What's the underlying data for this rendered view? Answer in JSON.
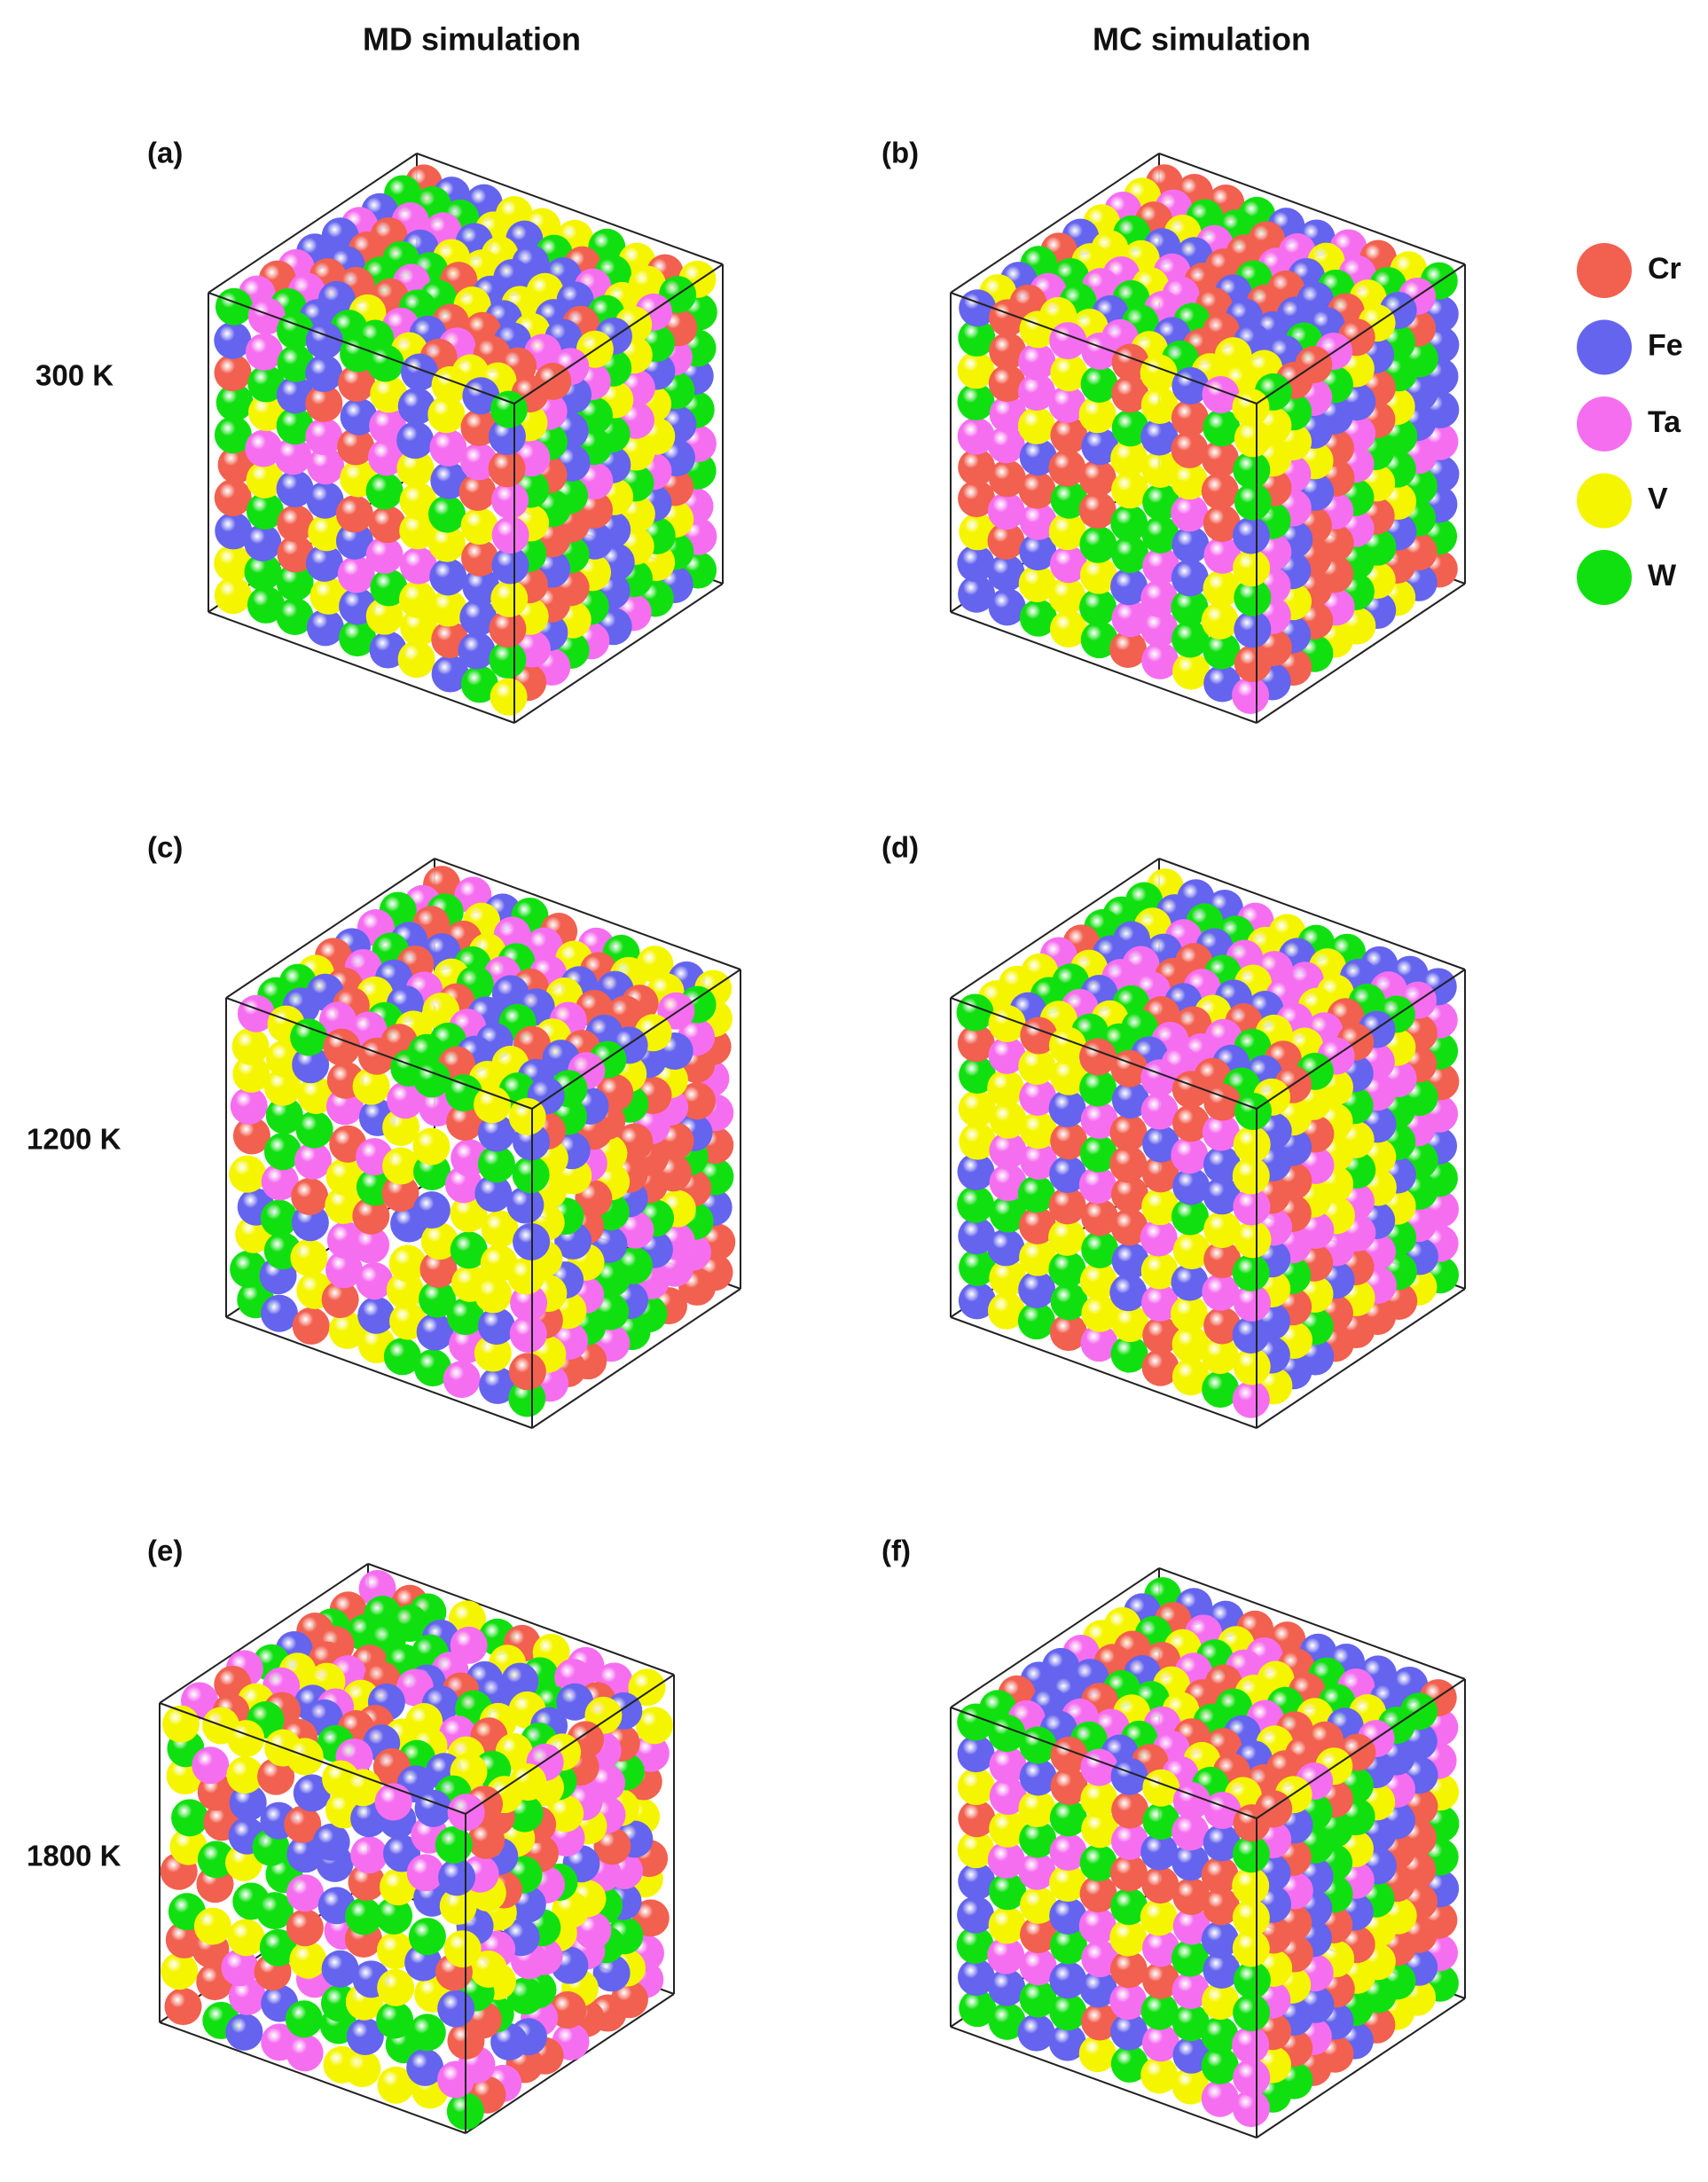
{
  "columns": [
    "MD simulation",
    "MC simulation"
  ],
  "rows": [
    "300 K",
    "1200 K",
    "1800 K"
  ],
  "panels": [
    "(a)",
    "(b)",
    "(c)",
    "(d)",
    "(e)",
    "(f)"
  ],
  "legend": [
    {
      "name": "Cr",
      "color": "#f2604f"
    },
    {
      "name": "Fe",
      "color": "#6464ee"
    },
    {
      "name": "Ta",
      "color": "#f66ef0"
    },
    {
      "name": "V",
      "color": "#f5f500"
    },
    {
      "name": "W",
      "color": "#10e010"
    }
  ]
}
